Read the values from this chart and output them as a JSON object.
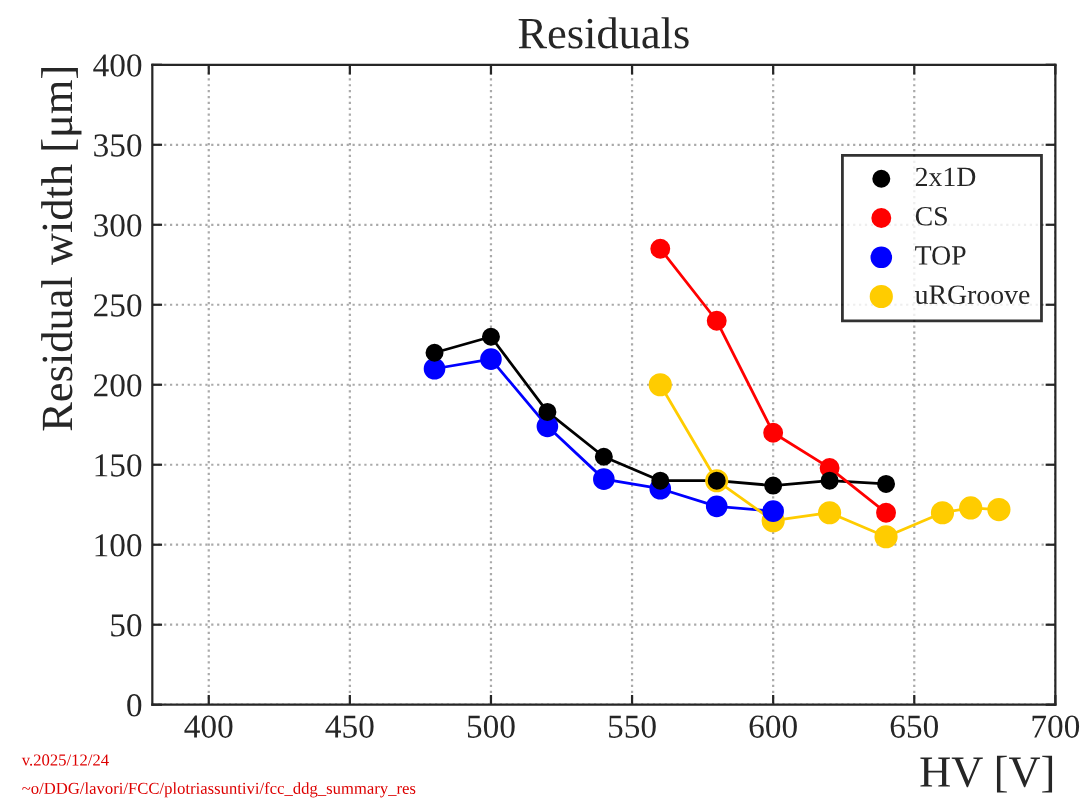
{
  "chart_data": {
    "type": "line",
    "title": "Residuals",
    "xlabel": "HV [V]",
    "ylabel": "Residual width [μm]",
    "xlim": [
      380,
      700
    ],
    "xticks": [
      400,
      450,
      500,
      550,
      600,
      650,
      700
    ],
    "ylim": [
      0,
      400
    ],
    "yticks": [
      0,
      50,
      100,
      150,
      200,
      250,
      300,
      350,
      400
    ],
    "grid": true,
    "legend": "top right",
    "marker": "circle",
    "line_style": "solid",
    "series": [
      {
        "name": "2x1D",
        "color": "#000000",
        "x": [
          480,
          500,
          520,
          540,
          560,
          580,
          600,
          620,
          640
        ],
        "values": [
          220,
          230,
          183,
          155,
          140,
          140,
          137,
          140,
          138
        ]
      },
      {
        "name": "CS",
        "color": "#ff0000",
        "x": [
          560,
          580,
          600,
          620,
          640
        ],
        "values": [
          285,
          240,
          170,
          148,
          120
        ]
      },
      {
        "name": "TOP",
        "color": "#0000ff",
        "x": [
          480,
          500,
          520,
          540,
          560,
          580,
          600
        ],
        "values": [
          210,
          216,
          174,
          141,
          135,
          124,
          121
        ]
      },
      {
        "name": "uRGroove",
        "color": "#ffcc00",
        "x": [
          560,
          580,
          600,
          620,
          640,
          660,
          670,
          680
        ],
        "values": [
          200,
          140,
          115,
          120,
          105,
          120,
          123,
          122
        ]
      }
    ],
    "annotations": [
      "v.2025/12/24",
      "~o/DDG/lavori/FCC/plotriassuntivi/fcc_ddg_summary_res"
    ]
  }
}
